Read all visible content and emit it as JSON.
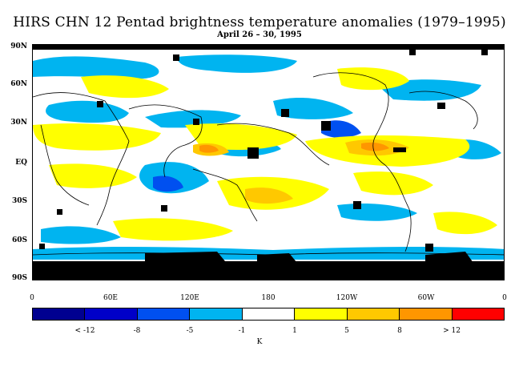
{
  "title": "HIRS CHN 12 Pentad brightness temperature anomalies (1979–1995)",
  "subtitle": "April 26 – 30, 1995",
  "y_labels": [
    "90N",
    "60N",
    "30N",
    "EQ",
    "30S",
    "60S",
    "90S"
  ],
  "x_labels": [
    "0",
    "60E",
    "120E",
    "180",
    "120W",
    "60W",
    "0"
  ],
  "colorbar": {
    "colors": [
      "#000090",
      "#0000c8",
      "#0050f0",
      "#00b4f0",
      "#ffffff",
      "#ffff00",
      "#ffc800",
      "#ff9600",
      "#ff0000"
    ],
    "labels": [
      "< -12",
      "-8",
      "-5",
      "-1",
      "1",
      "5",
      "8",
      "> 12"
    ],
    "unit": "K"
  },
  "colors": {
    "missing": "#000000",
    "coast": "#000000"
  }
}
